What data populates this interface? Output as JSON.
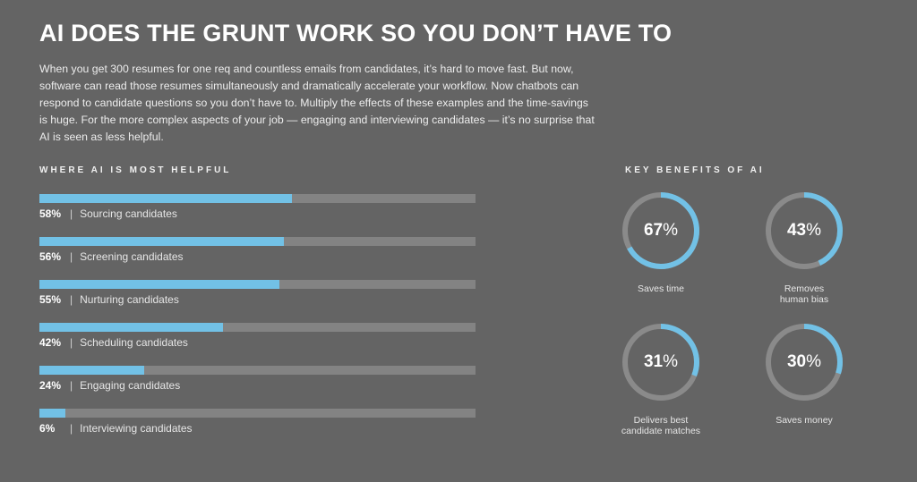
{
  "title": "AI DOES THE GRUNT WORK SO YOU DON’T HAVE TO",
  "intro": "When you get 300 resumes for one req and countless emails from candidates, it’s hard to move fast. But now, software can read those resumes simultaneously and dramatically accelerate your workflow. Now chatbots can respond to candidate questions so you don’t have to. Multiply the effects of these examples and the time-savings is huge. For the more complex aspects of your job — engaging and interviewing candidates — it’s no surprise that AI is seen as less helpful.",
  "colors": {
    "background": "#646464",
    "accent": "#72c1e6",
    "track": "#838383",
    "ring": "#8a8a8a"
  },
  "chart_data": [
    {
      "type": "bar",
      "title": "WHERE AI IS MOST HELPFUL",
      "categories": [
        "Sourcing candidates",
        "Screening candidates",
        "Nurturing candidates",
        "Scheduling candidates",
        "Engaging candidates",
        "Interviewing candidates"
      ],
      "values": [
        58,
        56,
        55,
        42,
        24,
        6
      ],
      "value_labels": [
        "58%",
        "56%",
        "55%",
        "42%",
        "24%",
        "6%"
      ],
      "ylim": [
        0,
        100
      ]
    },
    {
      "type": "pie",
      "title": "KEY BENEFITS OF AI",
      "categories": [
        "Saves time",
        "Removes human bias",
        "Delivers best candidate matches",
        "Saves money"
      ],
      "label_lines": [
        [
          "Saves time"
        ],
        [
          "Removes",
          "human bias"
        ],
        [
          "Delivers best",
          "candidate matches"
        ],
        [
          "Saves money"
        ]
      ],
      "values": [
        67,
        43,
        31,
        30
      ]
    }
  ]
}
